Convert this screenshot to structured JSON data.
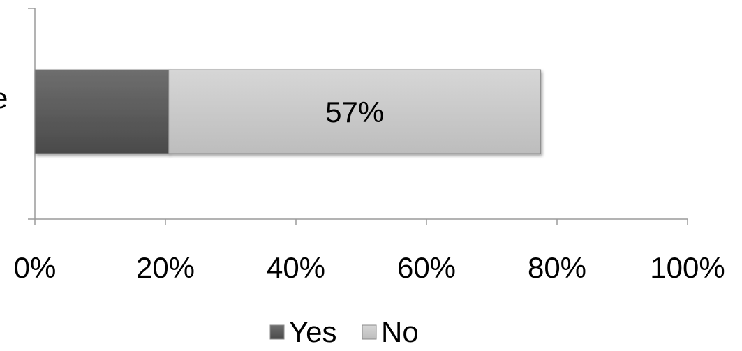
{
  "chart_data": {
    "type": "bar",
    "orientation": "horizontal",
    "stacked": true,
    "categories": [
      "e"
    ],
    "series": [
      {
        "name": "Yes",
        "values": [
          20.5
        ],
        "color": "#595959",
        "data_label": ""
      },
      {
        "name": "No",
        "values": [
          57
        ],
        "color": "#c8c8c8",
        "data_label": "57%"
      }
    ],
    "xlim": [
      0,
      100
    ],
    "xticks": [
      "0%",
      "20%",
      "40%",
      "60%",
      "80%",
      "100%"
    ],
    "legend_position": "bottom",
    "grid": false
  }
}
